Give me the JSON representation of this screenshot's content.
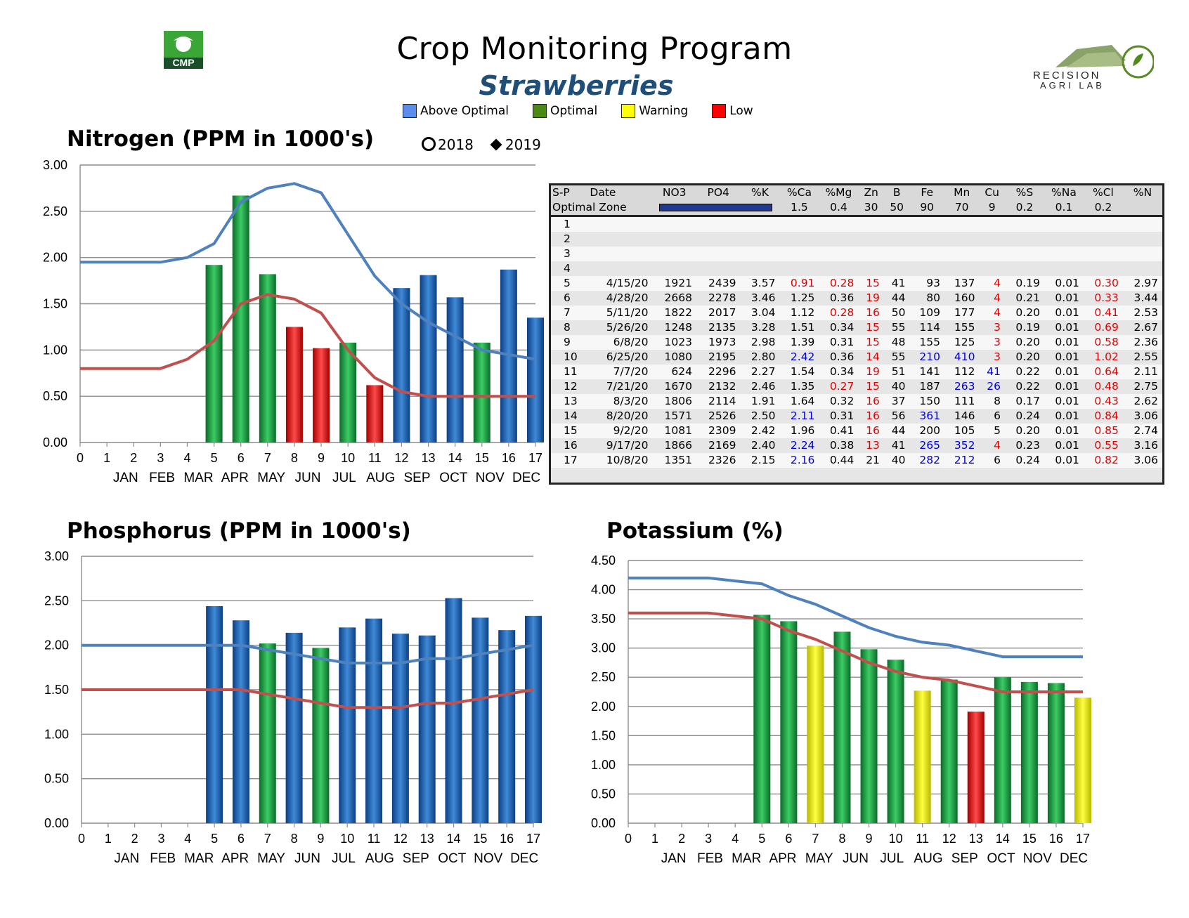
{
  "header": {
    "title": "Crop Monitoring Program",
    "subtitle": "Strawberries",
    "cmp_logo_text": "CMP",
    "lab_logo_text": [
      "RECISION",
      "AGRI LAB"
    ]
  },
  "legend": [
    {
      "label": "Above Optimal",
      "color": "#5b8def"
    },
    {
      "label": "Optimal",
      "color": "#4a8a12"
    },
    {
      "label": "Warning",
      "color": "#ffff00"
    },
    {
      "label": "Low",
      "color": "#ff0000"
    }
  ],
  "year_legend": {
    "y2018": "2018",
    "y2019": "2019",
    "y2018_marker": "circle-outline",
    "y2019_marker": "diamond-filled"
  },
  "colors": {
    "blue": "#1e63b5",
    "green": "#16a34a",
    "red": "#e11414",
    "yellow": "#f5f500",
    "line_high": "#4f81bd",
    "line_low": "#c0504d"
  },
  "chart_data": [
    {
      "id": "nitrogen",
      "type": "bar",
      "title": "Nitrogen (PPM in 1000's)",
      "x_ticks": [
        "0",
        "1",
        "2",
        "3",
        "4",
        "5",
        "6",
        "7",
        "8",
        "9",
        "10",
        "11",
        "12",
        "13",
        "14",
        "15",
        "16",
        "17"
      ],
      "months": [
        "JAN",
        "FEB",
        "MAR",
        "APR",
        "MAY",
        "JUN",
        "JUL",
        "AUG",
        "SEP",
        "OCT",
        "NOV",
        "DEC"
      ],
      "y_ticks": [
        "0.00",
        "0.50",
        "1.00",
        "1.50",
        "2.00",
        "2.50",
        "3.00"
      ],
      "ylim": [
        0,
        3
      ],
      "xlim": [
        0,
        17
      ],
      "bars": [
        {
          "x": 5,
          "value": 1.92,
          "status": "green"
        },
        {
          "x": 6,
          "value": 2.67,
          "status": "green"
        },
        {
          "x": 7,
          "value": 1.82,
          "status": "green"
        },
        {
          "x": 8,
          "value": 1.25,
          "status": "red"
        },
        {
          "x": 9,
          "value": 1.02,
          "status": "red"
        },
        {
          "x": 10,
          "value": 1.08,
          "status": "green"
        },
        {
          "x": 11,
          "value": 0.62,
          "status": "red"
        },
        {
          "x": 12,
          "value": 1.67,
          "status": "blue"
        },
        {
          "x": 13,
          "value": 1.81,
          "status": "blue"
        },
        {
          "x": 14,
          "value": 1.57,
          "status": "blue"
        },
        {
          "x": 15,
          "value": 1.08,
          "status": "green"
        },
        {
          "x": 16,
          "value": 1.87,
          "status": "blue"
        },
        {
          "x": 17,
          "value": 1.35,
          "status": "blue"
        }
      ],
      "upper_line": [
        [
          0,
          1.95
        ],
        [
          3,
          1.95
        ],
        [
          4,
          2.0
        ],
        [
          5,
          2.15
        ],
        [
          6,
          2.6
        ],
        [
          7,
          2.75
        ],
        [
          8,
          2.8
        ],
        [
          9,
          2.7
        ],
        [
          10,
          2.25
        ],
        [
          11,
          1.8
        ],
        [
          12,
          1.5
        ],
        [
          13,
          1.3
        ],
        [
          14,
          1.15
        ],
        [
          15,
          1.0
        ],
        [
          16,
          0.95
        ],
        [
          17,
          0.9
        ]
      ],
      "lower_line": [
        [
          0,
          0.8
        ],
        [
          3,
          0.8
        ],
        [
          4,
          0.9
        ],
        [
          5,
          1.1
        ],
        [
          6,
          1.5
        ],
        [
          7,
          1.6
        ],
        [
          8,
          1.55
        ],
        [
          9,
          1.4
        ],
        [
          10,
          1.0
        ],
        [
          11,
          0.7
        ],
        [
          12,
          0.55
        ],
        [
          13,
          0.5
        ],
        [
          17,
          0.5
        ]
      ]
    },
    {
      "id": "phosphorus",
      "type": "bar",
      "title": "Phosphorus (PPM in 1000's)",
      "x_ticks": [
        "0",
        "1",
        "2",
        "3",
        "4",
        "5",
        "6",
        "7",
        "8",
        "9",
        "10",
        "11",
        "12",
        "13",
        "14",
        "15",
        "16",
        "17"
      ],
      "months": [
        "JAN",
        "FEB",
        "MAR",
        "APR",
        "MAY",
        "JUN",
        "JUL",
        "AUG",
        "SEP",
        "OCT",
        "NOV",
        "DEC"
      ],
      "y_ticks": [
        "0.00",
        "0.50",
        "1.00",
        "1.50",
        "2.00",
        "2.50",
        "3.00"
      ],
      "ylim": [
        0,
        3
      ],
      "xlim": [
        0,
        17
      ],
      "bars": [
        {
          "x": 5,
          "value": 2.44,
          "status": "blue"
        },
        {
          "x": 6,
          "value": 2.28,
          "status": "blue"
        },
        {
          "x": 7,
          "value": 2.02,
          "status": "green"
        },
        {
          "x": 8,
          "value": 2.14,
          "status": "blue"
        },
        {
          "x": 9,
          "value": 1.97,
          "status": "green"
        },
        {
          "x": 10,
          "value": 2.2,
          "status": "blue"
        },
        {
          "x": 11,
          "value": 2.3,
          "status": "blue"
        },
        {
          "x": 12,
          "value": 2.13,
          "status": "blue"
        },
        {
          "x": 13,
          "value": 2.11,
          "status": "blue"
        },
        {
          "x": 14,
          "value": 2.53,
          "status": "blue"
        },
        {
          "x": 15,
          "value": 2.31,
          "status": "blue"
        },
        {
          "x": 16,
          "value": 2.17,
          "status": "blue"
        },
        {
          "x": 17,
          "value": 2.33,
          "status": "blue"
        }
      ],
      "upper_line": [
        [
          0,
          2.0
        ],
        [
          6,
          2.0
        ],
        [
          7,
          1.95
        ],
        [
          8,
          1.9
        ],
        [
          9,
          1.85
        ],
        [
          10,
          1.8
        ],
        [
          12,
          1.8
        ],
        [
          13,
          1.85
        ],
        [
          14,
          1.85
        ],
        [
          15,
          1.9
        ],
        [
          16,
          1.95
        ],
        [
          17,
          2.0
        ]
      ],
      "lower_line": [
        [
          0,
          1.5
        ],
        [
          6,
          1.5
        ],
        [
          7,
          1.45
        ],
        [
          8,
          1.4
        ],
        [
          9,
          1.35
        ],
        [
          10,
          1.3
        ],
        [
          12,
          1.3
        ],
        [
          13,
          1.35
        ],
        [
          14,
          1.35
        ],
        [
          15,
          1.4
        ],
        [
          16,
          1.45
        ],
        [
          17,
          1.5
        ]
      ]
    },
    {
      "id": "potassium",
      "type": "bar",
      "title": "Potassium (%)",
      "x_ticks": [
        "0",
        "1",
        "2",
        "3",
        "4",
        "5",
        "6",
        "7",
        "8",
        "9",
        "10",
        "11",
        "12",
        "13",
        "14",
        "15",
        "16",
        "17"
      ],
      "months": [
        "JAN",
        "FEB",
        "MAR",
        "APR",
        "MAY",
        "JUN",
        "JUL",
        "AUG",
        "SEP",
        "OCT",
        "NOV",
        "DEC"
      ],
      "y_ticks": [
        "0.00",
        "0.50",
        "1.00",
        "1.50",
        "2.00",
        "2.50",
        "3.00",
        "3.50",
        "4.00",
        "4.50"
      ],
      "ylim": [
        0,
        4.5
      ],
      "xlim": [
        0,
        17
      ],
      "bars": [
        {
          "x": 5,
          "value": 3.57,
          "status": "green"
        },
        {
          "x": 6,
          "value": 3.46,
          "status": "green"
        },
        {
          "x": 7,
          "value": 3.04,
          "status": "yellow"
        },
        {
          "x": 8,
          "value": 3.28,
          "status": "green"
        },
        {
          "x": 9,
          "value": 2.98,
          "status": "green"
        },
        {
          "x": 10,
          "value": 2.8,
          "status": "green"
        },
        {
          "x": 11,
          "value": 2.27,
          "status": "yellow"
        },
        {
          "x": 12,
          "value": 2.46,
          "status": "green"
        },
        {
          "x": 13,
          "value": 1.91,
          "status": "red"
        },
        {
          "x": 14,
          "value": 2.5,
          "status": "green"
        },
        {
          "x": 15,
          "value": 2.42,
          "status": "green"
        },
        {
          "x": 16,
          "value": 2.4,
          "status": "green"
        },
        {
          "x": 17,
          "value": 2.15,
          "status": "yellow"
        }
      ],
      "upper_line": [
        [
          0,
          4.2
        ],
        [
          3,
          4.2
        ],
        [
          4,
          4.15
        ],
        [
          5,
          4.1
        ],
        [
          6,
          3.9
        ],
        [
          7,
          3.75
        ],
        [
          8,
          3.55
        ],
        [
          9,
          3.35
        ],
        [
          10,
          3.2
        ],
        [
          11,
          3.1
        ],
        [
          12,
          3.05
        ],
        [
          13,
          2.95
        ],
        [
          14,
          2.85
        ],
        [
          17,
          2.85
        ]
      ],
      "lower_line": [
        [
          0,
          3.6
        ],
        [
          3,
          3.6
        ],
        [
          4,
          3.55
        ],
        [
          5,
          3.5
        ],
        [
          6,
          3.3
        ],
        [
          7,
          3.15
        ],
        [
          8,
          2.95
        ],
        [
          9,
          2.75
        ],
        [
          10,
          2.6
        ],
        [
          11,
          2.5
        ],
        [
          12,
          2.45
        ],
        [
          13,
          2.35
        ],
        [
          14,
          2.25
        ],
        [
          17,
          2.25
        ]
      ]
    }
  ],
  "table": {
    "columns": [
      "S-P",
      "Date",
      "NO3",
      "PO4",
      "%K",
      "%Ca",
      "%Mg",
      "Zn",
      "B",
      "Fe",
      "Mn",
      "Cu",
      "%S",
      "%Na",
      "%Cl",
      "%N"
    ],
    "optimal_label": "Optimal Zone",
    "optimal_values": [
      "1.5",
      "0.4",
      "30",
      "50",
      "90",
      "70",
      "9",
      "0.2",
      "0.1",
      "0.2"
    ],
    "empty_rows": [
      "1",
      "2",
      "3",
      "4"
    ],
    "rows": [
      {
        "sp": "5",
        "date": "4/15/20",
        "vals": [
          "1921",
          "2439",
          "3.57",
          "0.91",
          "0.28",
          "15",
          "41",
          "93",
          "137",
          "4",
          "0.19",
          "0.01",
          "0.30",
          "2.97"
        ],
        "flags": [
          "",
          "",
          "",
          "r",
          "r",
          "r",
          "",
          "",
          "",
          "r",
          "",
          "",
          "r",
          ""
        ]
      },
      {
        "sp": "6",
        "date": "4/28/20",
        "vals": [
          "2668",
          "2278",
          "3.46",
          "1.25",
          "0.36",
          "19",
          "44",
          "80",
          "160",
          "4",
          "0.21",
          "0.01",
          "0.33",
          "3.44"
        ],
        "flags": [
          "",
          "",
          "",
          "",
          "",
          "r",
          "",
          "",
          "",
          "r",
          "",
          "",
          "r",
          ""
        ]
      },
      {
        "sp": "7",
        "date": "5/11/20",
        "vals": [
          "1822",
          "2017",
          "3.04",
          "1.12",
          "0.28",
          "16",
          "50",
          "109",
          "177",
          "4",
          "0.20",
          "0.01",
          "0.41",
          "2.53"
        ],
        "flags": [
          "",
          "",
          "",
          "",
          "r",
          "r",
          "",
          "",
          "",
          "r",
          "",
          "",
          "r",
          ""
        ]
      },
      {
        "sp": "8",
        "date": "5/26/20",
        "vals": [
          "1248",
          "2135",
          "3.28",
          "1.51",
          "0.34",
          "15",
          "55",
          "114",
          "155",
          "3",
          "0.19",
          "0.01",
          "0.69",
          "2.67"
        ],
        "flags": [
          "",
          "",
          "",
          "",
          "",
          "r",
          "",
          "",
          "",
          "r",
          "",
          "",
          "r",
          ""
        ]
      },
      {
        "sp": "9",
        "date": "6/8/20",
        "vals": [
          "1023",
          "1973",
          "2.98",
          "1.39",
          "0.31",
          "15",
          "48",
          "155",
          "125",
          "3",
          "0.20",
          "0.01",
          "0.58",
          "2.36"
        ],
        "flags": [
          "",
          "",
          "",
          "",
          "",
          "r",
          "",
          "",
          "",
          "r",
          "",
          "",
          "r",
          ""
        ]
      },
      {
        "sp": "10",
        "date": "6/25/20",
        "vals": [
          "1080",
          "2195",
          "2.80",
          "2.42",
          "0.36",
          "14",
          "55",
          "210",
          "410",
          "3",
          "0.20",
          "0.01",
          "1.02",
          "2.55"
        ],
        "flags": [
          "",
          "",
          "",
          "b",
          "",
          "r",
          "",
          "b",
          "b",
          "r",
          "",
          "",
          "r",
          ""
        ]
      },
      {
        "sp": "11",
        "date": "7/7/20",
        "vals": [
          "624",
          "2296",
          "2.27",
          "1.54",
          "0.34",
          "19",
          "51",
          "141",
          "112",
          "41",
          "0.22",
          "0.01",
          "0.64",
          "2.11"
        ],
        "flags": [
          "",
          "",
          "",
          "",
          "",
          "r",
          "",
          "",
          "",
          "b",
          "",
          "",
          "r",
          ""
        ]
      },
      {
        "sp": "12",
        "date": "7/21/20",
        "vals": [
          "1670",
          "2132",
          "2.46",
          "1.35",
          "0.27",
          "15",
          "40",
          "187",
          "263",
          "26",
          "0.22",
          "0.01",
          "0.48",
          "2.75"
        ],
        "flags": [
          "",
          "",
          "",
          "",
          "r",
          "r",
          "",
          "",
          "b",
          "b",
          "",
          "",
          "r",
          ""
        ]
      },
      {
        "sp": "13",
        "date": "8/3/20",
        "vals": [
          "1806",
          "2114",
          "1.91",
          "1.64",
          "0.32",
          "16",
          "37",
          "150",
          "111",
          "8",
          "0.17",
          "0.01",
          "0.43",
          "2.62"
        ],
        "flags": [
          "",
          "",
          "",
          "",
          "",
          "r",
          "",
          "",
          "",
          "",
          "",
          "",
          "r",
          ""
        ]
      },
      {
        "sp": "14",
        "date": "8/20/20",
        "vals": [
          "1571",
          "2526",
          "2.50",
          "2.11",
          "0.31",
          "16",
          "56",
          "361",
          "146",
          "6",
          "0.24",
          "0.01",
          "0.84",
          "3.06"
        ],
        "flags": [
          "",
          "",
          "",
          "b",
          "",
          "r",
          "",
          "b",
          "",
          "",
          "",
          "",
          "r",
          ""
        ]
      },
      {
        "sp": "15",
        "date": "9/2/20",
        "vals": [
          "1081",
          "2309",
          "2.42",
          "1.96",
          "0.41",
          "16",
          "44",
          "200",
          "105",
          "5",
          "0.20",
          "0.01",
          "0.85",
          "2.74"
        ],
        "flags": [
          "",
          "",
          "",
          "",
          "",
          "r",
          "",
          "",
          "",
          "",
          "",
          "",
          "r",
          ""
        ]
      },
      {
        "sp": "16",
        "date": "9/17/20",
        "vals": [
          "1866",
          "2169",
          "2.40",
          "2.24",
          "0.38",
          "13",
          "41",
          "265",
          "352",
          "4",
          "0.23",
          "0.01",
          "0.55",
          "3.16"
        ],
        "flags": [
          "",
          "",
          "",
          "b",
          "",
          "r",
          "",
          "b",
          "b",
          "r",
          "",
          "",
          "r",
          ""
        ]
      },
      {
        "sp": "17",
        "date": "10/8/20",
        "vals": [
          "1351",
          "2326",
          "2.15",
          "2.16",
          "0.44",
          "21",
          "40",
          "282",
          "212",
          "6",
          "0.24",
          "0.01",
          "0.82",
          "3.06"
        ],
        "flags": [
          "",
          "",
          "",
          "b",
          "",
          "",
          "",
          "b",
          "b",
          "",
          "",
          "",
          "r",
          ""
        ]
      }
    ]
  }
}
